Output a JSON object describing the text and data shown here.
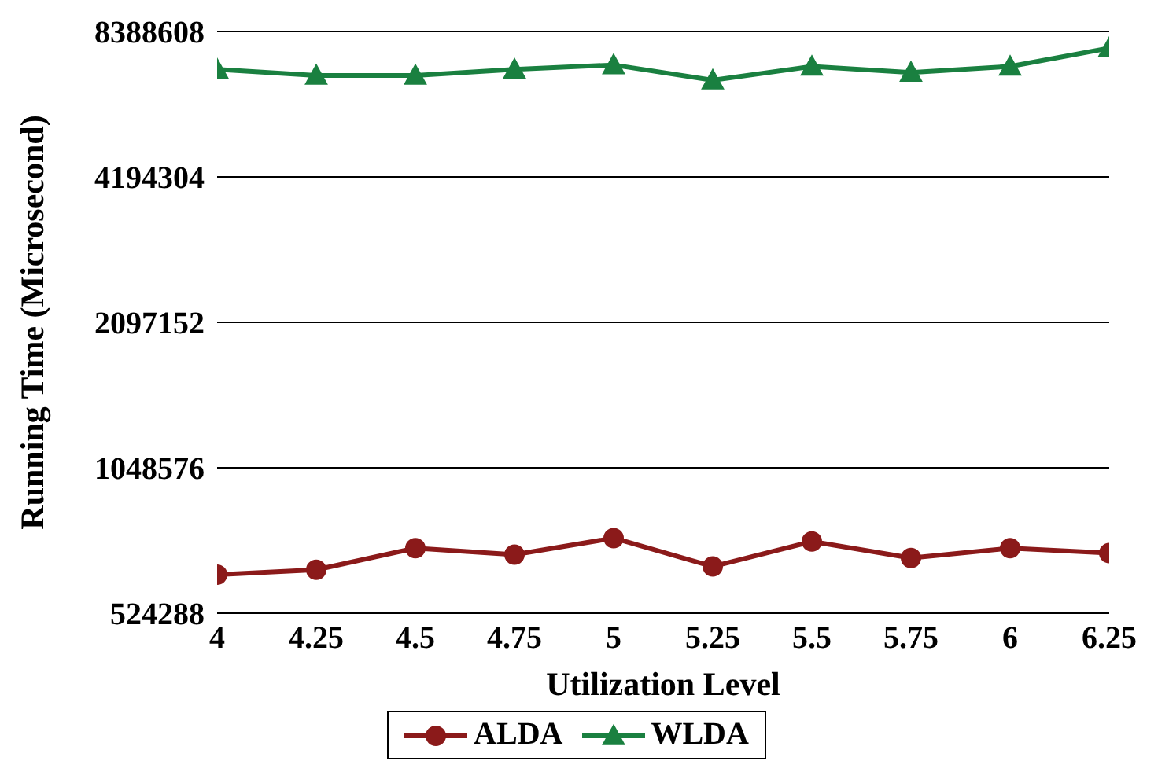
{
  "chart_data": {
    "type": "line",
    "xlabel": "Utilization Level",
    "ylabel": "Running Time (Microsecond)",
    "x": [
      4,
      4.25,
      4.5,
      4.75,
      5,
      5.25,
      5.5,
      5.75,
      6,
      6.25
    ],
    "xlim": [
      4,
      6.25
    ],
    "xticks": [
      4,
      4.25,
      4.5,
      4.75,
      5,
      5.25,
      5.5,
      5.75,
      6,
      6.25
    ],
    "ylim": [
      524288,
      8388608
    ],
    "yticks": [
      524288,
      1048576,
      2097152,
      4194304,
      8388608
    ],
    "log": "y",
    "grid": "y",
    "legend": "bottom",
    "line_style": "solid",
    "series": [
      {
        "name": "ALDA",
        "color": "#8b1a1a",
        "marker": "circle",
        "values": [
          630000,
          645000,
          715000,
          693000,
          750000,
          655000,
          738000,
          682000,
          715000,
          698000
        ]
      },
      {
        "name": "WLDA",
        "color": "#1a8040",
        "marker": "triangle",
        "values": [
          7000000,
          6800000,
          6800000,
          7000000,
          7150000,
          6650000,
          7100000,
          6900000,
          7100000,
          7750000
        ]
      }
    ]
  }
}
